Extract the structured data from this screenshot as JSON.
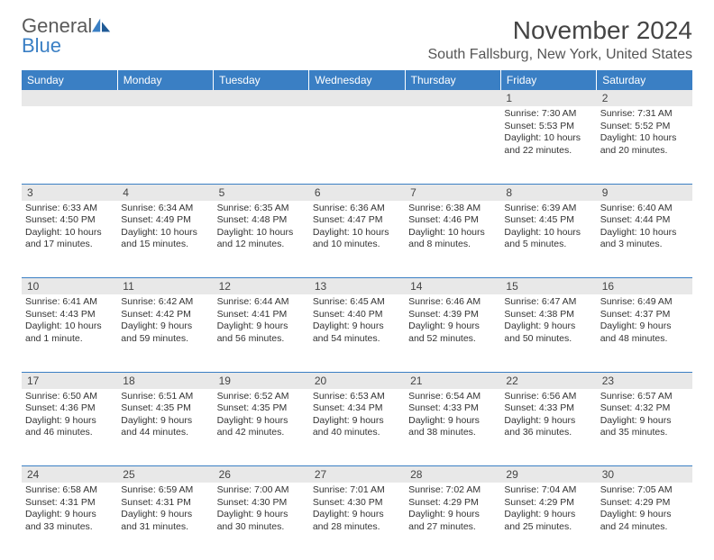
{
  "logo": {
    "text_general": "General",
    "text_blue": "Blue"
  },
  "title": "November 2024",
  "location": "South Fallsburg, New York, United States",
  "colors": {
    "header_bg": "#3a7fc4",
    "header_text": "#ffffff",
    "daynum_bg": "#e8e8e8",
    "body_text": "#333333",
    "rule": "#3a7fc4",
    "logo_gray": "#5a5a5a",
    "logo_blue": "#3a7fc4"
  },
  "weekdays": [
    "Sunday",
    "Monday",
    "Tuesday",
    "Wednesday",
    "Thursday",
    "Friday",
    "Saturday"
  ],
  "weeks": [
    [
      {
        "n": "",
        "sr": "",
        "ss": "",
        "dl": ""
      },
      {
        "n": "",
        "sr": "",
        "ss": "",
        "dl": ""
      },
      {
        "n": "",
        "sr": "",
        "ss": "",
        "dl": ""
      },
      {
        "n": "",
        "sr": "",
        "ss": "",
        "dl": ""
      },
      {
        "n": "",
        "sr": "",
        "ss": "",
        "dl": ""
      },
      {
        "n": "1",
        "sr": "Sunrise: 7:30 AM",
        "ss": "Sunset: 5:53 PM",
        "dl": "Daylight: 10 hours and 22 minutes."
      },
      {
        "n": "2",
        "sr": "Sunrise: 7:31 AM",
        "ss": "Sunset: 5:52 PM",
        "dl": "Daylight: 10 hours and 20 minutes."
      }
    ],
    [
      {
        "n": "3",
        "sr": "Sunrise: 6:33 AM",
        "ss": "Sunset: 4:50 PM",
        "dl": "Daylight: 10 hours and 17 minutes."
      },
      {
        "n": "4",
        "sr": "Sunrise: 6:34 AM",
        "ss": "Sunset: 4:49 PM",
        "dl": "Daylight: 10 hours and 15 minutes."
      },
      {
        "n": "5",
        "sr": "Sunrise: 6:35 AM",
        "ss": "Sunset: 4:48 PM",
        "dl": "Daylight: 10 hours and 12 minutes."
      },
      {
        "n": "6",
        "sr": "Sunrise: 6:36 AM",
        "ss": "Sunset: 4:47 PM",
        "dl": "Daylight: 10 hours and 10 minutes."
      },
      {
        "n": "7",
        "sr": "Sunrise: 6:38 AM",
        "ss": "Sunset: 4:46 PM",
        "dl": "Daylight: 10 hours and 8 minutes."
      },
      {
        "n": "8",
        "sr": "Sunrise: 6:39 AM",
        "ss": "Sunset: 4:45 PM",
        "dl": "Daylight: 10 hours and 5 minutes."
      },
      {
        "n": "9",
        "sr": "Sunrise: 6:40 AM",
        "ss": "Sunset: 4:44 PM",
        "dl": "Daylight: 10 hours and 3 minutes."
      }
    ],
    [
      {
        "n": "10",
        "sr": "Sunrise: 6:41 AM",
        "ss": "Sunset: 4:43 PM",
        "dl": "Daylight: 10 hours and 1 minute."
      },
      {
        "n": "11",
        "sr": "Sunrise: 6:42 AM",
        "ss": "Sunset: 4:42 PM",
        "dl": "Daylight: 9 hours and 59 minutes."
      },
      {
        "n": "12",
        "sr": "Sunrise: 6:44 AM",
        "ss": "Sunset: 4:41 PM",
        "dl": "Daylight: 9 hours and 56 minutes."
      },
      {
        "n": "13",
        "sr": "Sunrise: 6:45 AM",
        "ss": "Sunset: 4:40 PM",
        "dl": "Daylight: 9 hours and 54 minutes."
      },
      {
        "n": "14",
        "sr": "Sunrise: 6:46 AM",
        "ss": "Sunset: 4:39 PM",
        "dl": "Daylight: 9 hours and 52 minutes."
      },
      {
        "n": "15",
        "sr": "Sunrise: 6:47 AM",
        "ss": "Sunset: 4:38 PM",
        "dl": "Daylight: 9 hours and 50 minutes."
      },
      {
        "n": "16",
        "sr": "Sunrise: 6:49 AM",
        "ss": "Sunset: 4:37 PM",
        "dl": "Daylight: 9 hours and 48 minutes."
      }
    ],
    [
      {
        "n": "17",
        "sr": "Sunrise: 6:50 AM",
        "ss": "Sunset: 4:36 PM",
        "dl": "Daylight: 9 hours and 46 minutes."
      },
      {
        "n": "18",
        "sr": "Sunrise: 6:51 AM",
        "ss": "Sunset: 4:35 PM",
        "dl": "Daylight: 9 hours and 44 minutes."
      },
      {
        "n": "19",
        "sr": "Sunrise: 6:52 AM",
        "ss": "Sunset: 4:35 PM",
        "dl": "Daylight: 9 hours and 42 minutes."
      },
      {
        "n": "20",
        "sr": "Sunrise: 6:53 AM",
        "ss": "Sunset: 4:34 PM",
        "dl": "Daylight: 9 hours and 40 minutes."
      },
      {
        "n": "21",
        "sr": "Sunrise: 6:54 AM",
        "ss": "Sunset: 4:33 PM",
        "dl": "Daylight: 9 hours and 38 minutes."
      },
      {
        "n": "22",
        "sr": "Sunrise: 6:56 AM",
        "ss": "Sunset: 4:33 PM",
        "dl": "Daylight: 9 hours and 36 minutes."
      },
      {
        "n": "23",
        "sr": "Sunrise: 6:57 AM",
        "ss": "Sunset: 4:32 PM",
        "dl": "Daylight: 9 hours and 35 minutes."
      }
    ],
    [
      {
        "n": "24",
        "sr": "Sunrise: 6:58 AM",
        "ss": "Sunset: 4:31 PM",
        "dl": "Daylight: 9 hours and 33 minutes."
      },
      {
        "n": "25",
        "sr": "Sunrise: 6:59 AM",
        "ss": "Sunset: 4:31 PM",
        "dl": "Daylight: 9 hours and 31 minutes."
      },
      {
        "n": "26",
        "sr": "Sunrise: 7:00 AM",
        "ss": "Sunset: 4:30 PM",
        "dl": "Daylight: 9 hours and 30 minutes."
      },
      {
        "n": "27",
        "sr": "Sunrise: 7:01 AM",
        "ss": "Sunset: 4:30 PM",
        "dl": "Daylight: 9 hours and 28 minutes."
      },
      {
        "n": "28",
        "sr": "Sunrise: 7:02 AM",
        "ss": "Sunset: 4:29 PM",
        "dl": "Daylight: 9 hours and 27 minutes."
      },
      {
        "n": "29",
        "sr": "Sunrise: 7:04 AM",
        "ss": "Sunset: 4:29 PM",
        "dl": "Daylight: 9 hours and 25 minutes."
      },
      {
        "n": "30",
        "sr": "Sunrise: 7:05 AM",
        "ss": "Sunset: 4:29 PM",
        "dl": "Daylight: 9 hours and 24 minutes."
      }
    ]
  ]
}
